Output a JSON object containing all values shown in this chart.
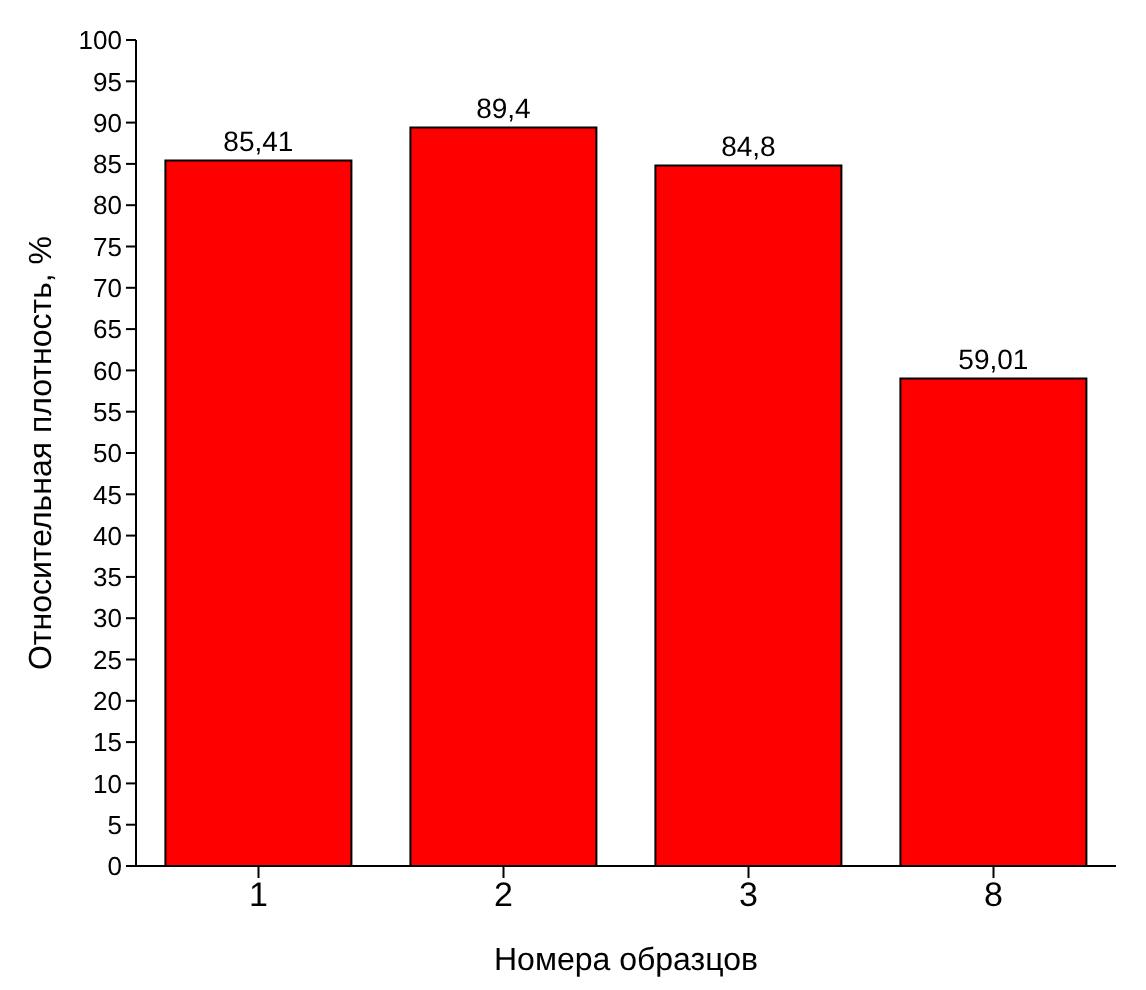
{
  "chart_data": {
    "type": "bar",
    "xlabel": "Номера образцов",
    "ylabel": "Относительная плотность, %",
    "categories": [
      "1",
      "2",
      "3",
      "8"
    ],
    "values": [
      85.41,
      89.4,
      84.8,
      59.01
    ],
    "value_labels": [
      "85,41",
      "89,4",
      "84,8",
      "59,01"
    ],
    "color": "#ff0000",
    "ylim": [
      0,
      100
    ],
    "yticks": [
      0,
      5,
      10,
      15,
      20,
      25,
      30,
      35,
      40,
      45,
      50,
      55,
      60,
      65,
      70,
      75,
      80,
      85,
      90,
      95,
      100
    ]
  }
}
